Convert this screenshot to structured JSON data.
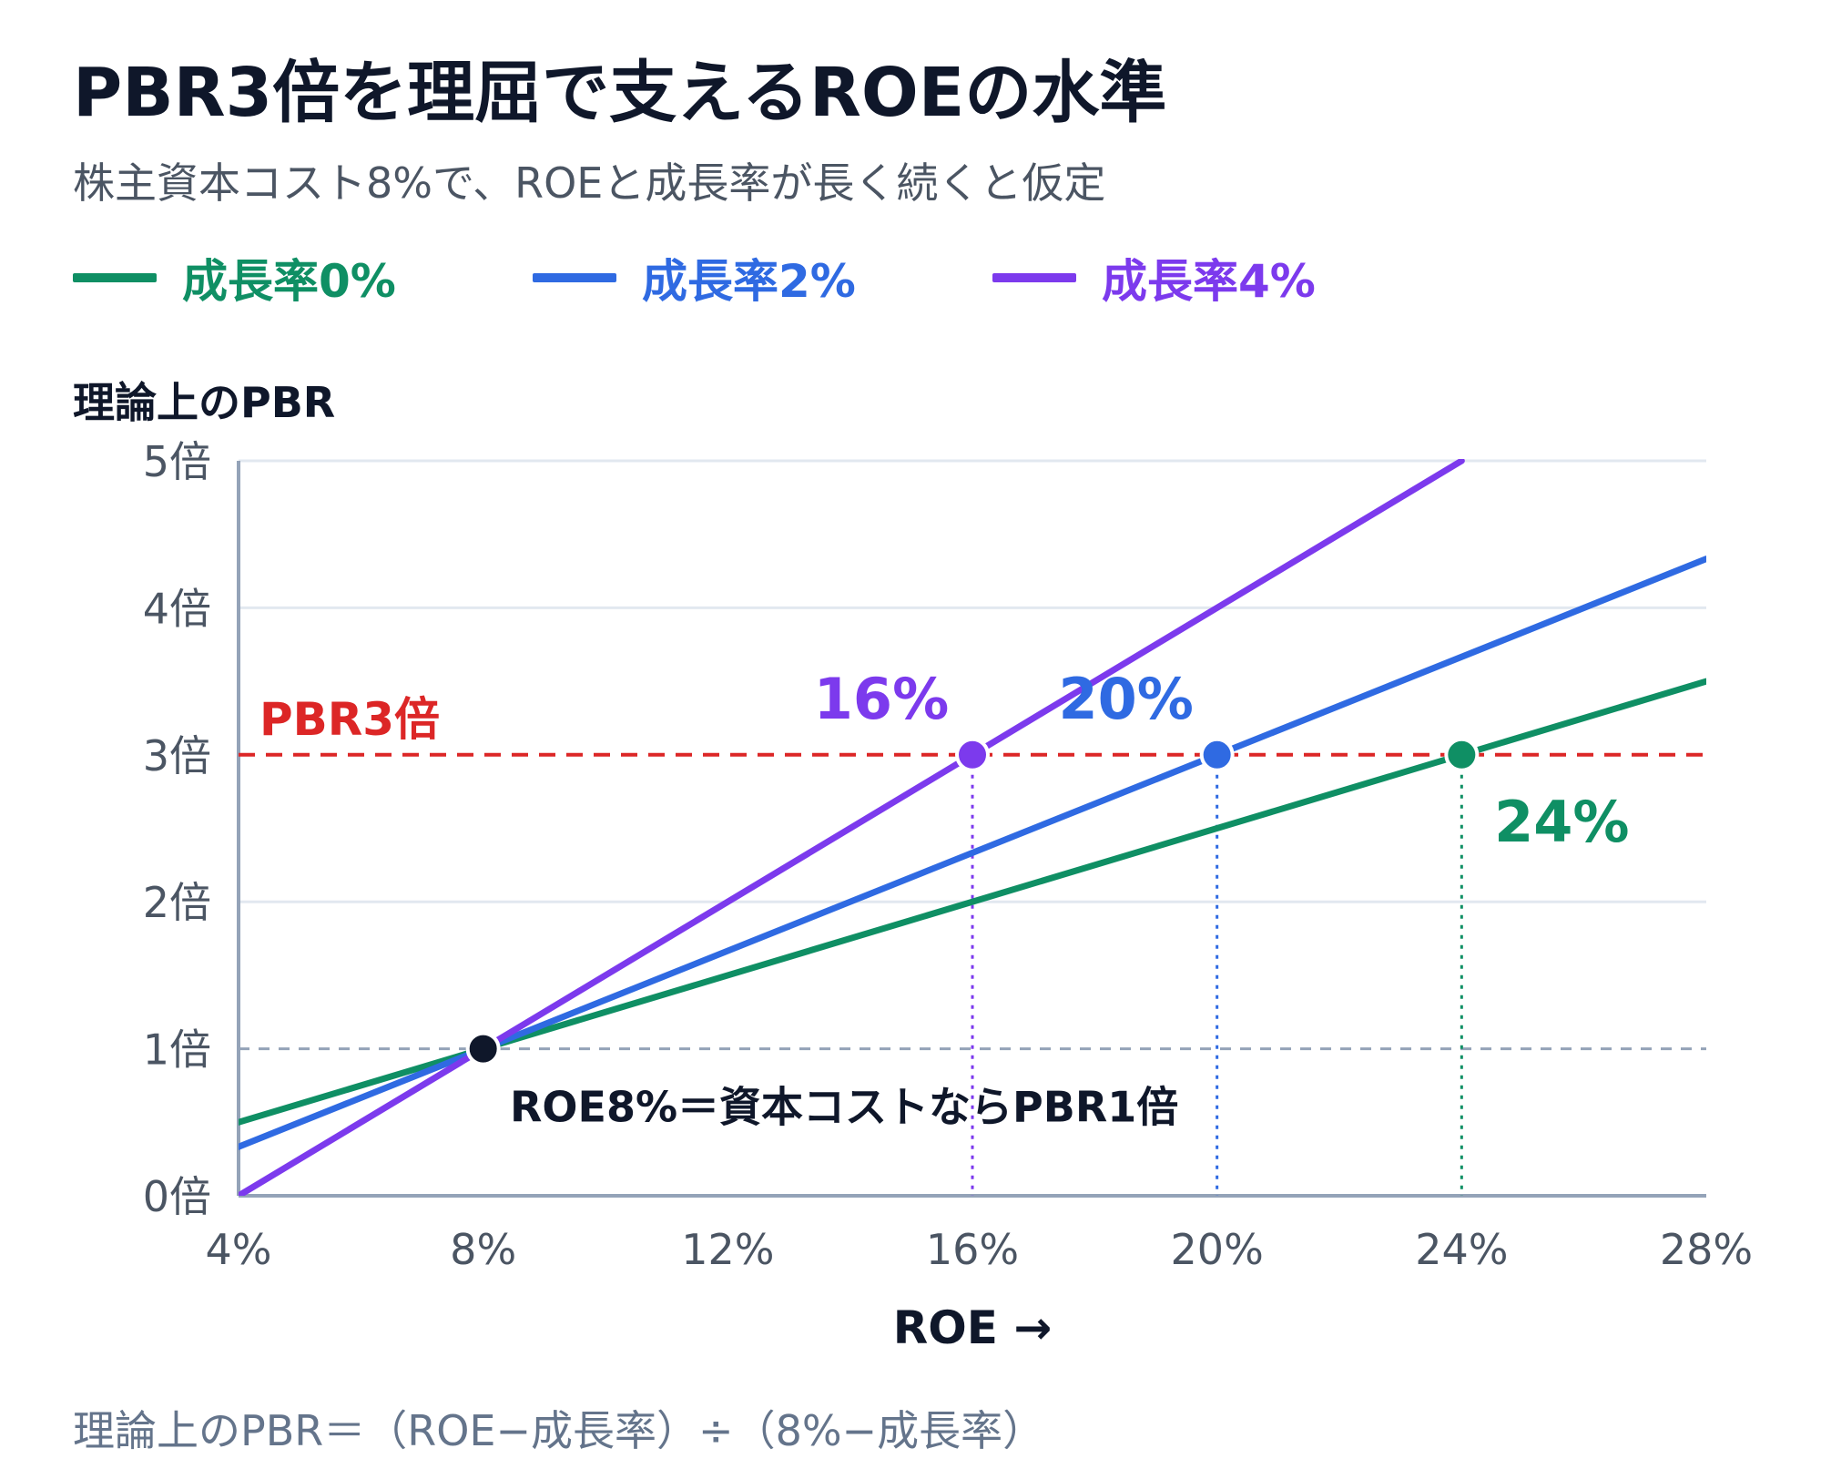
{
  "title": "PBR3倍を理屈で支えるROEの水準",
  "subtitle": "株主資本コスト8%で、ROEと成長率が長く続くと仮定",
  "footer": "理論上のPBR＝（ROE−成長率）÷（8%−成長率）",
  "colors": {
    "growth0": "#0f8f64",
    "growth2": "#2f6ae2",
    "growth4": "#7c3aed",
    "threshold": "#dc2626",
    "baseline": "#94a3b8",
    "axis": "#94a3b8",
    "grid": "#e2e8f0",
    "tick": "#4b5563",
    "dark": "#0f172a"
  },
  "chart_data": {
    "type": "line",
    "ylabel": "理論上のPBR",
    "xlabel": "ROE →",
    "xlim": [
      4,
      28
    ],
    "ylim": [
      0,
      5
    ],
    "grid": true,
    "legend_position": "top-left",
    "x_ticks": [
      4,
      8,
      12,
      16,
      20,
      24,
      28
    ],
    "x_tick_labels": [
      "4%",
      "8%",
      "12%",
      "16%",
      "20%",
      "24%",
      "28%"
    ],
    "y_ticks": [
      0,
      1,
      2,
      3,
      4,
      5
    ],
    "y_tick_labels": [
      "0倍",
      "1倍",
      "2倍",
      "3倍",
      "4倍",
      "5倍"
    ],
    "cost_of_equity": 8,
    "series": [
      {
        "name": "成長率0%",
        "growth": 0,
        "x": [
          4,
          28
        ],
        "y": [
          0.5,
          3.5
        ],
        "color_key": "growth0"
      },
      {
        "name": "成長率2%",
        "growth": 2,
        "x": [
          4,
          28
        ],
        "y": [
          0.333,
          4.333
        ],
        "color_key": "growth2"
      },
      {
        "name": "成長率4%",
        "growth": 4,
        "x": [
          4,
          24
        ],
        "y": [
          0,
          5
        ],
        "color_key": "growth4"
      }
    ],
    "threshold": {
      "y": 3,
      "label": "PBR3倍"
    },
    "baseline": {
      "y": 1
    },
    "crossings": [
      {
        "x": 16,
        "y": 3,
        "label": "16%",
        "color_key": "growth4"
      },
      {
        "x": 20,
        "y": 3,
        "label": "20%",
        "color_key": "growth2"
      },
      {
        "x": 24,
        "y": 3,
        "label": "24%",
        "color_key": "growth0"
      }
    ],
    "anchor_point": {
      "x": 8,
      "y": 1,
      "label": "ROE8%＝資本コストならPBR1倍"
    }
  }
}
